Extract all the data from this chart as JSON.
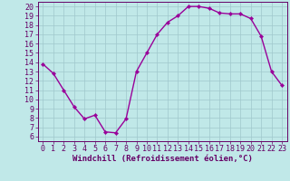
{
  "x": [
    0,
    1,
    2,
    3,
    4,
    5,
    6,
    7,
    8,
    9,
    10,
    11,
    12,
    13,
    14,
    15,
    16,
    17,
    18,
    19,
    20,
    21,
    22,
    23
  ],
  "y": [
    13.8,
    12.8,
    11.0,
    9.2,
    7.9,
    8.3,
    6.5,
    6.4,
    7.9,
    13.0,
    15.0,
    17.0,
    18.3,
    19.0,
    20.0,
    20.0,
    19.8,
    19.3,
    19.2,
    19.2,
    18.7,
    16.8,
    13.0,
    11.5
  ],
  "line_color": "#990099",
  "marker": "D",
  "marker_size": 2.2,
  "linewidth": 1.0,
  "background_color": "#c0e8e8",
  "grid_color": "#a0c8cc",
  "xlabel": "Windchill (Refroidissement éolien,°C)",
  "xlabel_fontsize": 6.5,
  "tick_fontsize": 6.0,
  "xlim": [
    -0.5,
    23.5
  ],
  "ylim": [
    5.5,
    20.5
  ],
  "yticks": [
    6,
    7,
    8,
    9,
    10,
    11,
    12,
    13,
    14,
    15,
    16,
    17,
    18,
    19,
    20
  ],
  "xticks": [
    0,
    1,
    2,
    3,
    4,
    5,
    6,
    7,
    8,
    9,
    10,
    11,
    12,
    13,
    14,
    15,
    16,
    17,
    18,
    19,
    20,
    21,
    22,
    23
  ],
  "tick_color": "#660066",
  "spine_color": "#660066",
  "label_color": "#660066"
}
